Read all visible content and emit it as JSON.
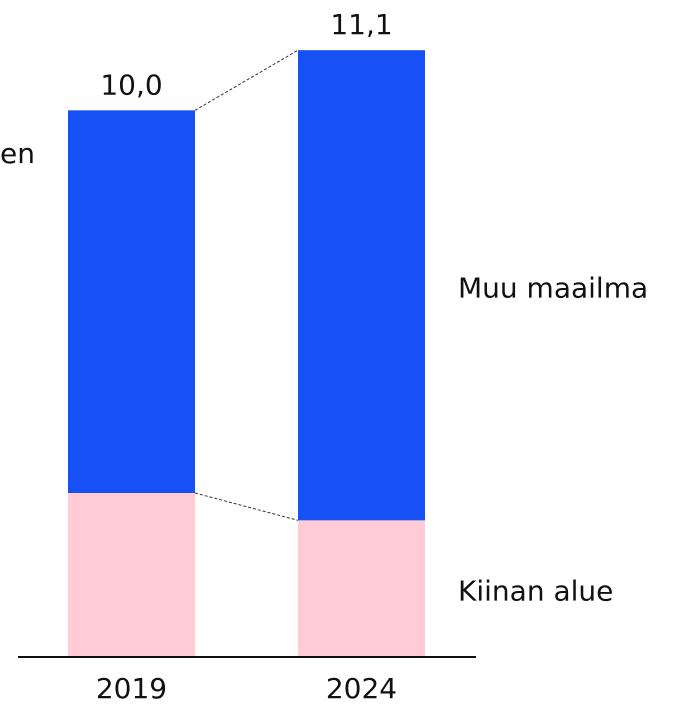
{
  "chart_data": {
    "type": "stacked_bar",
    "categories": [
      "2019",
      "2024"
    ],
    "series": [
      {
        "name": "Kiinan alue",
        "color": "#ffccd5",
        "values": [
          3.0,
          2.5
        ]
      },
      {
        "name": "Muu maailma",
        "color": "#1750f5",
        "values": [
          7.0,
          8.6
        ]
      }
    ],
    "totals": [
      10.0,
      11.1
    ],
    "total_labels": [
      "10,0",
      "11,1"
    ],
    "side_text": "en",
    "ylim": [
      0,
      12
    ]
  }
}
